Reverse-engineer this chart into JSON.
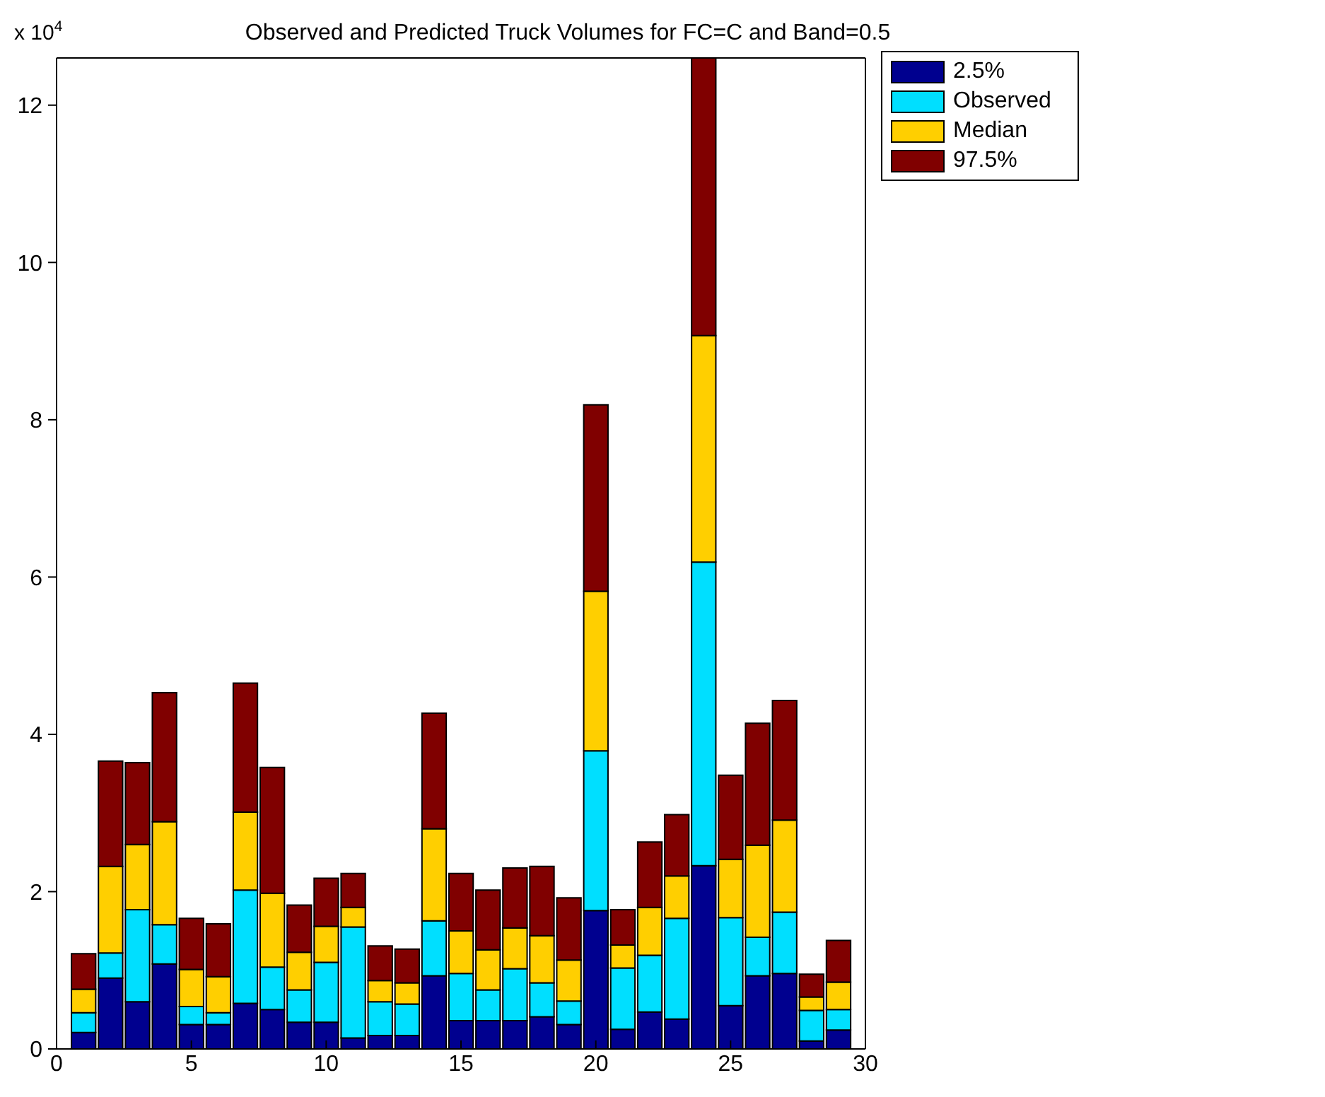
{
  "chart_data": {
    "type": "bar",
    "title": "Observed and Predicted Truck Volumes for FC=C and Band=0.5",
    "ylabel": "x 10$^{4}$",
    "stacked": true,
    "x": [
      1,
      2,
      3,
      4,
      5,
      6,
      7,
      8,
      9,
      10,
      11,
      12,
      13,
      14,
      15,
      16,
      17,
      18,
      19,
      20,
      21,
      22,
      23,
      24,
      25,
      26,
      27,
      28,
      29
    ],
    "series": [
      {
        "name": "2.5%",
        "color": "#00008f",
        "values": [
          0.21,
          0.9,
          0.6,
          1.08,
          0.31,
          0.31,
          0.58,
          0.5,
          0.34,
          0.34,
          0.14,
          0.17,
          0.17,
          0.93,
          0.36,
          0.36,
          0.36,
          0.41,
          0.31,
          1.76,
          0.25,
          0.47,
          0.38,
          2.33,
          0.55,
          0.93,
          0.96,
          0.1,
          0.24
        ]
      },
      {
        "name": "Observed",
        "color": "#00dfff",
        "values": [
          0.25,
          0.32,
          1.17,
          0.5,
          0.23,
          0.15,
          1.44,
          0.54,
          0.41,
          0.76,
          1.41,
          0.43,
          0.4,
          0.7,
          0.6,
          0.39,
          0.66,
          0.43,
          0.3,
          2.03,
          0.78,
          0.72,
          1.28,
          3.86,
          1.12,
          0.49,
          0.78,
          0.39,
          0.26
        ]
      },
      {
        "name": "Median",
        "color": "#ffcf00",
        "values": [
          0.3,
          1.1,
          0.83,
          1.31,
          0.47,
          0.46,
          0.99,
          0.94,
          0.48,
          0.46,
          0.25,
          0.27,
          0.27,
          1.17,
          0.54,
          0.51,
          0.52,
          0.6,
          0.52,
          2.03,
          0.29,
          0.61,
          0.54,
          2.88,
          0.74,
          1.17,
          1.17,
          0.17,
          0.35
        ]
      },
      {
        "name": "97.5%",
        "color": "#800000",
        "values": [
          0.45,
          1.34,
          1.04,
          1.64,
          0.65,
          0.67,
          1.64,
          1.6,
          0.6,
          0.61,
          0.43,
          0.44,
          0.43,
          1.47,
          0.73,
          0.76,
          0.76,
          0.88,
          0.79,
          2.37,
          0.45,
          0.83,
          0.78,
          3.53,
          1.07,
          1.55,
          1.52,
          0.29,
          0.53
        ]
      }
    ],
    "xlim": [
      0,
      30
    ],
    "xticks": [
      0,
      5,
      10,
      15,
      20,
      25,
      30
    ],
    "ylim": [
      0,
      12.6
    ],
    "yticks": [
      0,
      2,
      4,
      6,
      8,
      10,
      12
    ],
    "grid": false,
    "legend": "top right"
  }
}
